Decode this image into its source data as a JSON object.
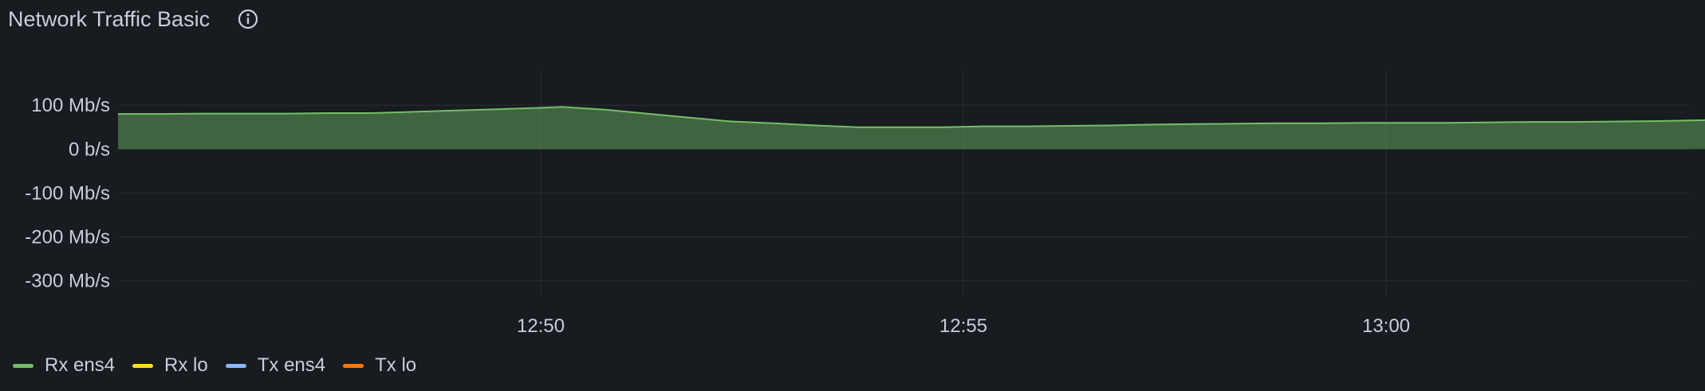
{
  "panel": {
    "title": "Network Traffic Basic",
    "info_icon": "info-circle-icon"
  },
  "colors": {
    "background": "#181b1f",
    "grid": "#2a2d33",
    "text": "#ccccdc",
    "rx_ens4": "#73bf69",
    "rx_lo": "#fade2a",
    "tx_ens4": "#8ab8ff",
    "tx_lo": "#ff780a"
  },
  "chart_data": {
    "type": "area",
    "title": "Network Traffic Basic",
    "xlabel": "",
    "ylabel": "",
    "y_unit": "b/s",
    "ylim": [
      -335,
      180
    ],
    "xlim": [
      "12:45:00",
      "13:03:35"
    ],
    "y_ticks": [
      {
        "value": 100,
        "label": "100 Mb/s"
      },
      {
        "value": 0,
        "label": "0 b/s"
      },
      {
        "value": -100,
        "label": "-100 Mb/s"
      },
      {
        "value": -200,
        "label": "-200 Mb/s"
      },
      {
        "value": -300,
        "label": "-300 Mb/s"
      }
    ],
    "x_ticks": [
      {
        "value": "12:50:00",
        "label": "12:50"
      },
      {
        "value": "12:55:00",
        "label": "12:55"
      },
      {
        "value": "13:00:00",
        "label": "13:00"
      }
    ],
    "grid": true,
    "legend_position": "bottom-left",
    "series": [
      {
        "name": "Rx ens4",
        "color": "#73bf69",
        "fill": "#73bf69",
        "points": [
          [
            "12:45:00",
            80
          ],
          [
            "12:45:30",
            80
          ],
          [
            "12:46:00",
            81
          ],
          [
            "12:46:30",
            81
          ],
          [
            "12:47:00",
            81
          ],
          [
            "12:47:30",
            82
          ],
          [
            "12:48:00",
            82
          ],
          [
            "12:48:30",
            85
          ],
          [
            "12:49:00",
            88
          ],
          [
            "12:49:30",
            91
          ],
          [
            "12:50:00",
            94
          ],
          [
            "12:50:15",
            96
          ],
          [
            "12:50:45",
            90
          ],
          [
            "12:51:15",
            81
          ],
          [
            "12:51:45",
            72
          ],
          [
            "12:52:15",
            63
          ],
          [
            "12:52:45",
            59
          ],
          [
            "12:53:15",
            54
          ],
          [
            "12:53:45",
            50
          ],
          [
            "12:54:15",
            50
          ],
          [
            "12:54:45",
            50
          ],
          [
            "12:55:15",
            52
          ],
          [
            "12:55:45",
            52
          ],
          [
            "12:56:15",
            53
          ],
          [
            "12:56:45",
            54
          ],
          [
            "12:57:15",
            56
          ],
          [
            "12:57:45",
            57
          ],
          [
            "12:58:15",
            58
          ],
          [
            "12:58:45",
            59
          ],
          [
            "12:59:15",
            59
          ],
          [
            "12:59:45",
            60
          ],
          [
            "13:00:15",
            60
          ],
          [
            "13:00:45",
            60
          ],
          [
            "13:01:15",
            61
          ],
          [
            "13:01:45",
            62
          ],
          [
            "13:02:15",
            62
          ],
          [
            "13:02:45",
            63
          ],
          [
            "13:03:15",
            64
          ],
          [
            "13:03:45",
            66
          ],
          [
            "13:04:15",
            72
          ]
        ]
      }
    ]
  },
  "legend": {
    "items": [
      {
        "label": "Rx ens4",
        "color": "#73bf69"
      },
      {
        "label": "Rx lo",
        "color": "#fade2a"
      },
      {
        "label": "Tx ens4",
        "color": "#8ab8ff"
      },
      {
        "label": "Tx lo",
        "color": "#ff780a"
      }
    ]
  }
}
